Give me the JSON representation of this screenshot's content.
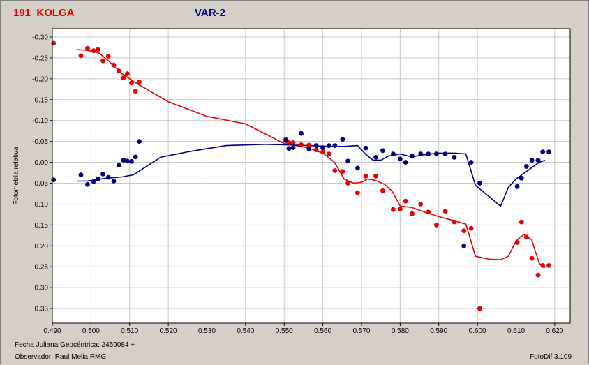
{
  "window": {
    "title_left": "191_KOLGA",
    "title_right": "VAR-2"
  },
  "footer": {
    "date_label": "Fecha Juliana Geocéntrica: 2459084 +",
    "observer_label": "Observador: Raul Melia RMG",
    "software_label": "FotoDif 3.109"
  },
  "colors": {
    "variable": "#e60000",
    "comparison": "#000080",
    "plot_background": "#ffffff",
    "grid": "#c8c8c8"
  },
  "chart_data": {
    "type": "scatter",
    "title": "",
    "xlabel": "",
    "ylabel": "Fotometría relativa",
    "xlim": [
      0.49,
      0.624
    ],
    "ylim": [
      -0.32,
      0.385
    ],
    "y_inverted": true,
    "grid": true,
    "xticks": [
      {
        "value": 0.49,
        "label": "0.490"
      },
      {
        "value": 0.5,
        "label": "0.500"
      },
      {
        "value": 0.51,
        "label": "0.510"
      },
      {
        "value": 0.52,
        "label": "0.520"
      },
      {
        "value": 0.53,
        "label": "0.530"
      },
      {
        "value": 0.54,
        "label": "0.540"
      },
      {
        "value": 0.55,
        "label": "0.550"
      },
      {
        "value": 0.56,
        "label": "0.560"
      },
      {
        "value": 0.57,
        "label": "0.570"
      },
      {
        "value": 0.58,
        "label": "0.580"
      },
      {
        "value": 0.59,
        "label": "0.590"
      },
      {
        "value": 0.6,
        "label": "0.600"
      },
      {
        "value": 0.61,
        "label": "0.610"
      },
      {
        "value": 0.62,
        "label": "0.620"
      }
    ],
    "yticks": [
      {
        "value": -0.3,
        "label": "-0.30"
      },
      {
        "value": -0.25,
        "label": "-0.25"
      },
      {
        "value": -0.2,
        "label": "-0.20"
      },
      {
        "value": -0.15,
        "label": "-0.15"
      },
      {
        "value": -0.1,
        "label": "-0.10"
      },
      {
        "value": -0.05,
        "label": "-0.05"
      },
      {
        "value": 0.0,
        "label": "0.00"
      },
      {
        "value": 0.05,
        "label": "0.05"
      },
      {
        "value": 0.1,
        "label": "0.10"
      },
      {
        "value": 0.15,
        "label": "0.15"
      },
      {
        "value": 0.2,
        "label": "0.20"
      },
      {
        "value": 0.25,
        "label": "0.25"
      },
      {
        "value": 0.3,
        "label": "0.30"
      },
      {
        "value": 0.35,
        "label": "0.35"
      }
    ],
    "series": [
      {
        "key": "variable",
        "color": "#e60000",
        "points": [
          [
            0.4903,
            -0.285
          ],
          [
            0.4974,
            -0.255
          ],
          [
            0.4991,
            -0.273
          ],
          [
            0.5007,
            -0.267
          ],
          [
            0.5018,
            -0.27
          ],
          [
            0.5031,
            -0.243
          ],
          [
            0.5045,
            -0.254
          ],
          [
            0.5059,
            -0.233
          ],
          [
            0.5072,
            -0.219
          ],
          [
            0.5084,
            -0.202
          ],
          [
            0.5094,
            -0.212
          ],
          [
            0.5105,
            -0.19
          ],
          [
            0.5115,
            -0.17
          ],
          [
            0.5125,
            -0.192
          ],
          [
            0.5504,
            -0.055
          ],
          [
            0.5512,
            -0.047
          ],
          [
            0.5523,
            -0.047
          ],
          [
            0.5544,
            -0.042
          ],
          [
            0.5564,
            -0.041
          ],
          [
            0.5583,
            -0.03
          ],
          [
            0.56,
            -0.025
          ],
          [
            0.5616,
            -0.02
          ],
          [
            0.5631,
            0.02
          ],
          [
            0.5651,
            0.022
          ],
          [
            0.5665,
            0.05
          ],
          [
            0.569,
            0.073
          ],
          [
            0.5711,
            0.033
          ],
          [
            0.5737,
            0.033
          ],
          [
            0.5755,
            0.068
          ],
          [
            0.5782,
            0.113
          ],
          [
            0.58,
            0.112
          ],
          [
            0.5814,
            0.093
          ],
          [
            0.5831,
            0.123
          ],
          [
            0.5853,
            0.1
          ],
          [
            0.5873,
            0.119
          ],
          [
            0.5894,
            0.15
          ],
          [
            0.5917,
            0.117
          ],
          [
            0.594,
            0.143
          ],
          [
            0.5965,
            0.164
          ],
          [
            0.5984,
            0.158
          ],
          [
            0.6006,
            0.35
          ],
          [
            0.6103,
            0.192
          ],
          [
            0.6114,
            0.143
          ],
          [
            0.6127,
            0.179
          ],
          [
            0.6141,
            0.23
          ],
          [
            0.6157,
            0.27
          ],
          [
            0.6169,
            0.247
          ],
          [
            0.6185,
            0.247
          ]
        ],
        "trend": [
          [
            0.4963,
            -0.27
          ],
          [
            0.499,
            -0.268
          ],
          [
            0.502,
            -0.262
          ],
          [
            0.5045,
            -0.243
          ],
          [
            0.508,
            -0.212
          ],
          [
            0.512,
            -0.188
          ],
          [
            0.52,
            -0.145
          ],
          [
            0.53,
            -0.11
          ],
          [
            0.54,
            -0.092
          ],
          [
            0.55,
            -0.045
          ],
          [
            0.556,
            -0.035
          ],
          [
            0.56,
            -0.022
          ],
          [
            0.563,
            0.0
          ],
          [
            0.5655,
            0.04
          ],
          [
            0.568,
            0.05
          ],
          [
            0.57,
            0.048
          ],
          [
            0.5715,
            0.04
          ],
          [
            0.5735,
            0.043
          ],
          [
            0.576,
            0.053
          ],
          [
            0.578,
            0.07
          ],
          [
            0.58,
            0.105
          ],
          [
            0.583,
            0.108
          ],
          [
            0.586,
            0.118
          ],
          [
            0.59,
            0.13
          ],
          [
            0.594,
            0.14
          ],
          [
            0.597,
            0.148
          ],
          [
            0.5995,
            0.225
          ],
          [
            0.603,
            0.232
          ],
          [
            0.606,
            0.233
          ],
          [
            0.608,
            0.225
          ],
          [
            0.61,
            0.188
          ],
          [
            0.612,
            0.173
          ],
          [
            0.614,
            0.185
          ],
          [
            0.616,
            0.242
          ],
          [
            0.6175,
            0.252
          ]
        ]
      },
      {
        "key": "comparison",
        "color": "#000080",
        "points": [
          [
            0.4903,
            0.042
          ],
          [
            0.4974,
            0.03
          ],
          [
            0.4991,
            0.053
          ],
          [
            0.5007,
            0.046
          ],
          [
            0.5018,
            0.04
          ],
          [
            0.5031,
            0.028
          ],
          [
            0.5045,
            0.036
          ],
          [
            0.5059,
            0.045
          ],
          [
            0.5072,
            0.007
          ],
          [
            0.5084,
            -0.005
          ],
          [
            0.5094,
            -0.003
          ],
          [
            0.5105,
            -0.002
          ],
          [
            0.5115,
            -0.013
          ],
          [
            0.5125,
            -0.05
          ],
          [
            0.5504,
            -0.052
          ],
          [
            0.5512,
            -0.033
          ],
          [
            0.5523,
            -0.035
          ],
          [
            0.5544,
            -0.069
          ],
          [
            0.5564,
            -0.032
          ],
          [
            0.5583,
            -0.04
          ],
          [
            0.56,
            -0.035
          ],
          [
            0.5616,
            -0.04
          ],
          [
            0.5631,
            -0.04
          ],
          [
            0.5651,
            -0.055
          ],
          [
            0.5665,
            -0.003
          ],
          [
            0.569,
            0.014
          ],
          [
            0.5711,
            -0.034
          ],
          [
            0.5737,
            -0.012
          ],
          [
            0.5755,
            -0.028
          ],
          [
            0.5782,
            -0.02
          ],
          [
            0.58,
            -0.008
          ],
          [
            0.5814,
            0.0
          ],
          [
            0.5831,
            -0.015
          ],
          [
            0.5853,
            -0.02
          ],
          [
            0.5873,
            -0.02
          ],
          [
            0.5894,
            -0.02
          ],
          [
            0.5917,
            -0.02
          ],
          [
            0.594,
            -0.012
          ],
          [
            0.5965,
            0.2
          ],
          [
            0.5984,
            0.0
          ],
          [
            0.6006,
            0.05
          ],
          [
            0.6103,
            0.058
          ],
          [
            0.6114,
            0.038
          ],
          [
            0.6127,
            0.01
          ],
          [
            0.6141,
            -0.005
          ],
          [
            0.6157,
            -0.005
          ],
          [
            0.6169,
            -0.025
          ],
          [
            0.6185,
            -0.025
          ]
        ],
        "trend": [
          [
            0.4963,
            0.045
          ],
          [
            0.499,
            0.045
          ],
          [
            0.501,
            0.042
          ],
          [
            0.504,
            0.038
          ],
          [
            0.508,
            0.035
          ],
          [
            0.511,
            0.03
          ],
          [
            0.514,
            0.012
          ],
          [
            0.518,
            -0.012
          ],
          [
            0.525,
            -0.025
          ],
          [
            0.535,
            -0.04
          ],
          [
            0.545,
            -0.043
          ],
          [
            0.55,
            -0.042
          ],
          [
            0.556,
            -0.04
          ],
          [
            0.562,
            -0.038
          ],
          [
            0.5655,
            -0.038
          ],
          [
            0.569,
            -0.04
          ],
          [
            0.571,
            -0.02
          ],
          [
            0.573,
            -0.005
          ],
          [
            0.575,
            -0.005
          ],
          [
            0.577,
            -0.015
          ],
          [
            0.58,
            -0.02
          ],
          [
            0.583,
            -0.013
          ],
          [
            0.586,
            -0.018
          ],
          [
            0.59,
            -0.022
          ],
          [
            0.594,
            -0.022
          ],
          [
            0.597,
            -0.02
          ],
          [
            0.5995,
            0.055
          ],
          [
            0.603,
            0.082
          ],
          [
            0.606,
            0.105
          ],
          [
            0.608,
            0.06
          ],
          [
            0.61,
            0.04
          ],
          [
            0.613,
            0.02
          ],
          [
            0.616,
            0.0
          ],
          [
            0.6175,
            -0.005
          ]
        ]
      }
    ]
  }
}
